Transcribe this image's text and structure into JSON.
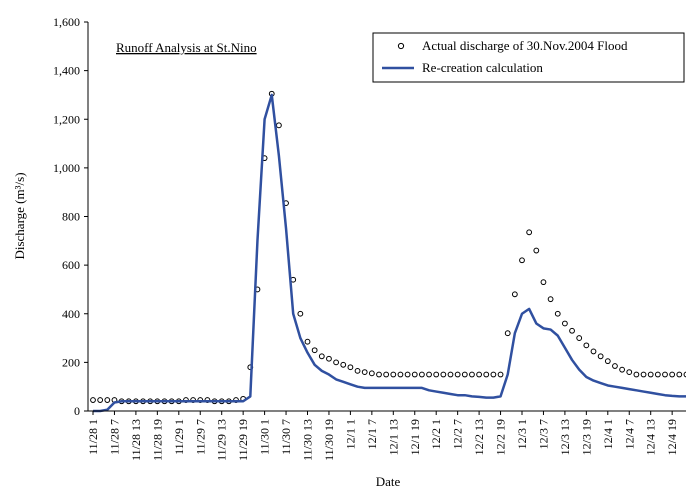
{
  "chart_data": {
    "type": "line",
    "title": "Runoff Analysis at St.Nino",
    "xlabel": "Date",
    "ylabel": "Discharge (m³/s)",
    "categories": [
      "11/28 1",
      null,
      null,
      "11/28 7",
      null,
      null,
      "11/28 13",
      null,
      null,
      "11/28 19",
      null,
      null,
      "11/29 1",
      null,
      null,
      "11/29 7",
      null,
      null,
      "11/29 13",
      null,
      null,
      "11/29 19",
      null,
      null,
      "11/30 1",
      null,
      null,
      "11/30 7",
      null,
      null,
      "11/30 13",
      null,
      null,
      "11/30 19",
      null,
      null,
      "12/1 1",
      null,
      null,
      "12/1 7",
      null,
      null,
      "12/1 13",
      null,
      null,
      "12/1 19",
      null,
      null,
      "12/2 1",
      null,
      null,
      "12/2 7",
      null,
      null,
      "12/2 13",
      null,
      null,
      "12/2 19",
      null,
      null,
      "12/3 1",
      null,
      null,
      "12/3 7",
      null,
      null,
      "12/3 13",
      null,
      null,
      "12/3 19",
      null,
      null,
      "12/4 1",
      null,
      null,
      "12/4 7",
      null,
      null,
      "12/4 13",
      null,
      null,
      "12/4 19",
      null,
      null
    ],
    "series": [
      {
        "name": "Actual discharge of 30.Nov.2004 Flood",
        "type": "scatter",
        "color": "#000000",
        "values": [
          45,
          45,
          45,
          45,
          40,
          40,
          40,
          40,
          40,
          40,
          40,
          40,
          40,
          45,
          45,
          45,
          45,
          40,
          40,
          40,
          45,
          50,
          180,
          500,
          1040,
          1305,
          1175,
          855,
          540,
          400,
          285,
          250,
          225,
          215,
          200,
          190,
          180,
          165,
          160,
          155,
          150,
          150,
          150,
          150,
          150,
          150,
          150,
          150,
          150,
          150,
          150,
          150,
          150,
          150,
          150,
          150,
          150,
          150,
          320,
          480,
          620,
          735,
          660,
          530,
          460,
          400,
          360,
          330,
          300,
          270,
          245,
          225,
          205,
          185,
          170,
          160,
          150,
          150,
          150,
          150,
          150,
          150,
          150,
          150
        ]
      },
      {
        "name": "Re-creation calculation",
        "type": "line",
        "color": "#3050a0",
        "values": [
          0,
          0,
          5,
          35,
          40,
          40,
          40,
          40,
          40,
          40,
          40,
          40,
          40,
          40,
          40,
          40,
          40,
          40,
          40,
          40,
          40,
          40,
          60,
          700,
          1200,
          1300,
          1050,
          750,
          400,
          300,
          240,
          190,
          165,
          150,
          130,
          120,
          110,
          100,
          95,
          95,
          95,
          95,
          95,
          95,
          95,
          95,
          95,
          85,
          80,
          75,
          70,
          65,
          65,
          60,
          58,
          55,
          55,
          60,
          150,
          320,
          400,
          420,
          360,
          340,
          335,
          310,
          260,
          210,
          170,
          140,
          125,
          115,
          105,
          100,
          95,
          90,
          85,
          80,
          75,
          70,
          65,
          62,
          60,
          60
        ]
      }
    ],
    "ylim": [
      0,
      1600
    ],
    "yticks": [
      0,
      200,
      400,
      600,
      800,
      {
        "value": 1000,
        "label": "1,000"
      },
      {
        "value": 1200,
        "label": "1,200"
      },
      {
        "value": 1400,
        "label": "1,400"
      },
      {
        "value": 1600,
        "label": "1,600"
      }
    ],
    "grid": false
  }
}
